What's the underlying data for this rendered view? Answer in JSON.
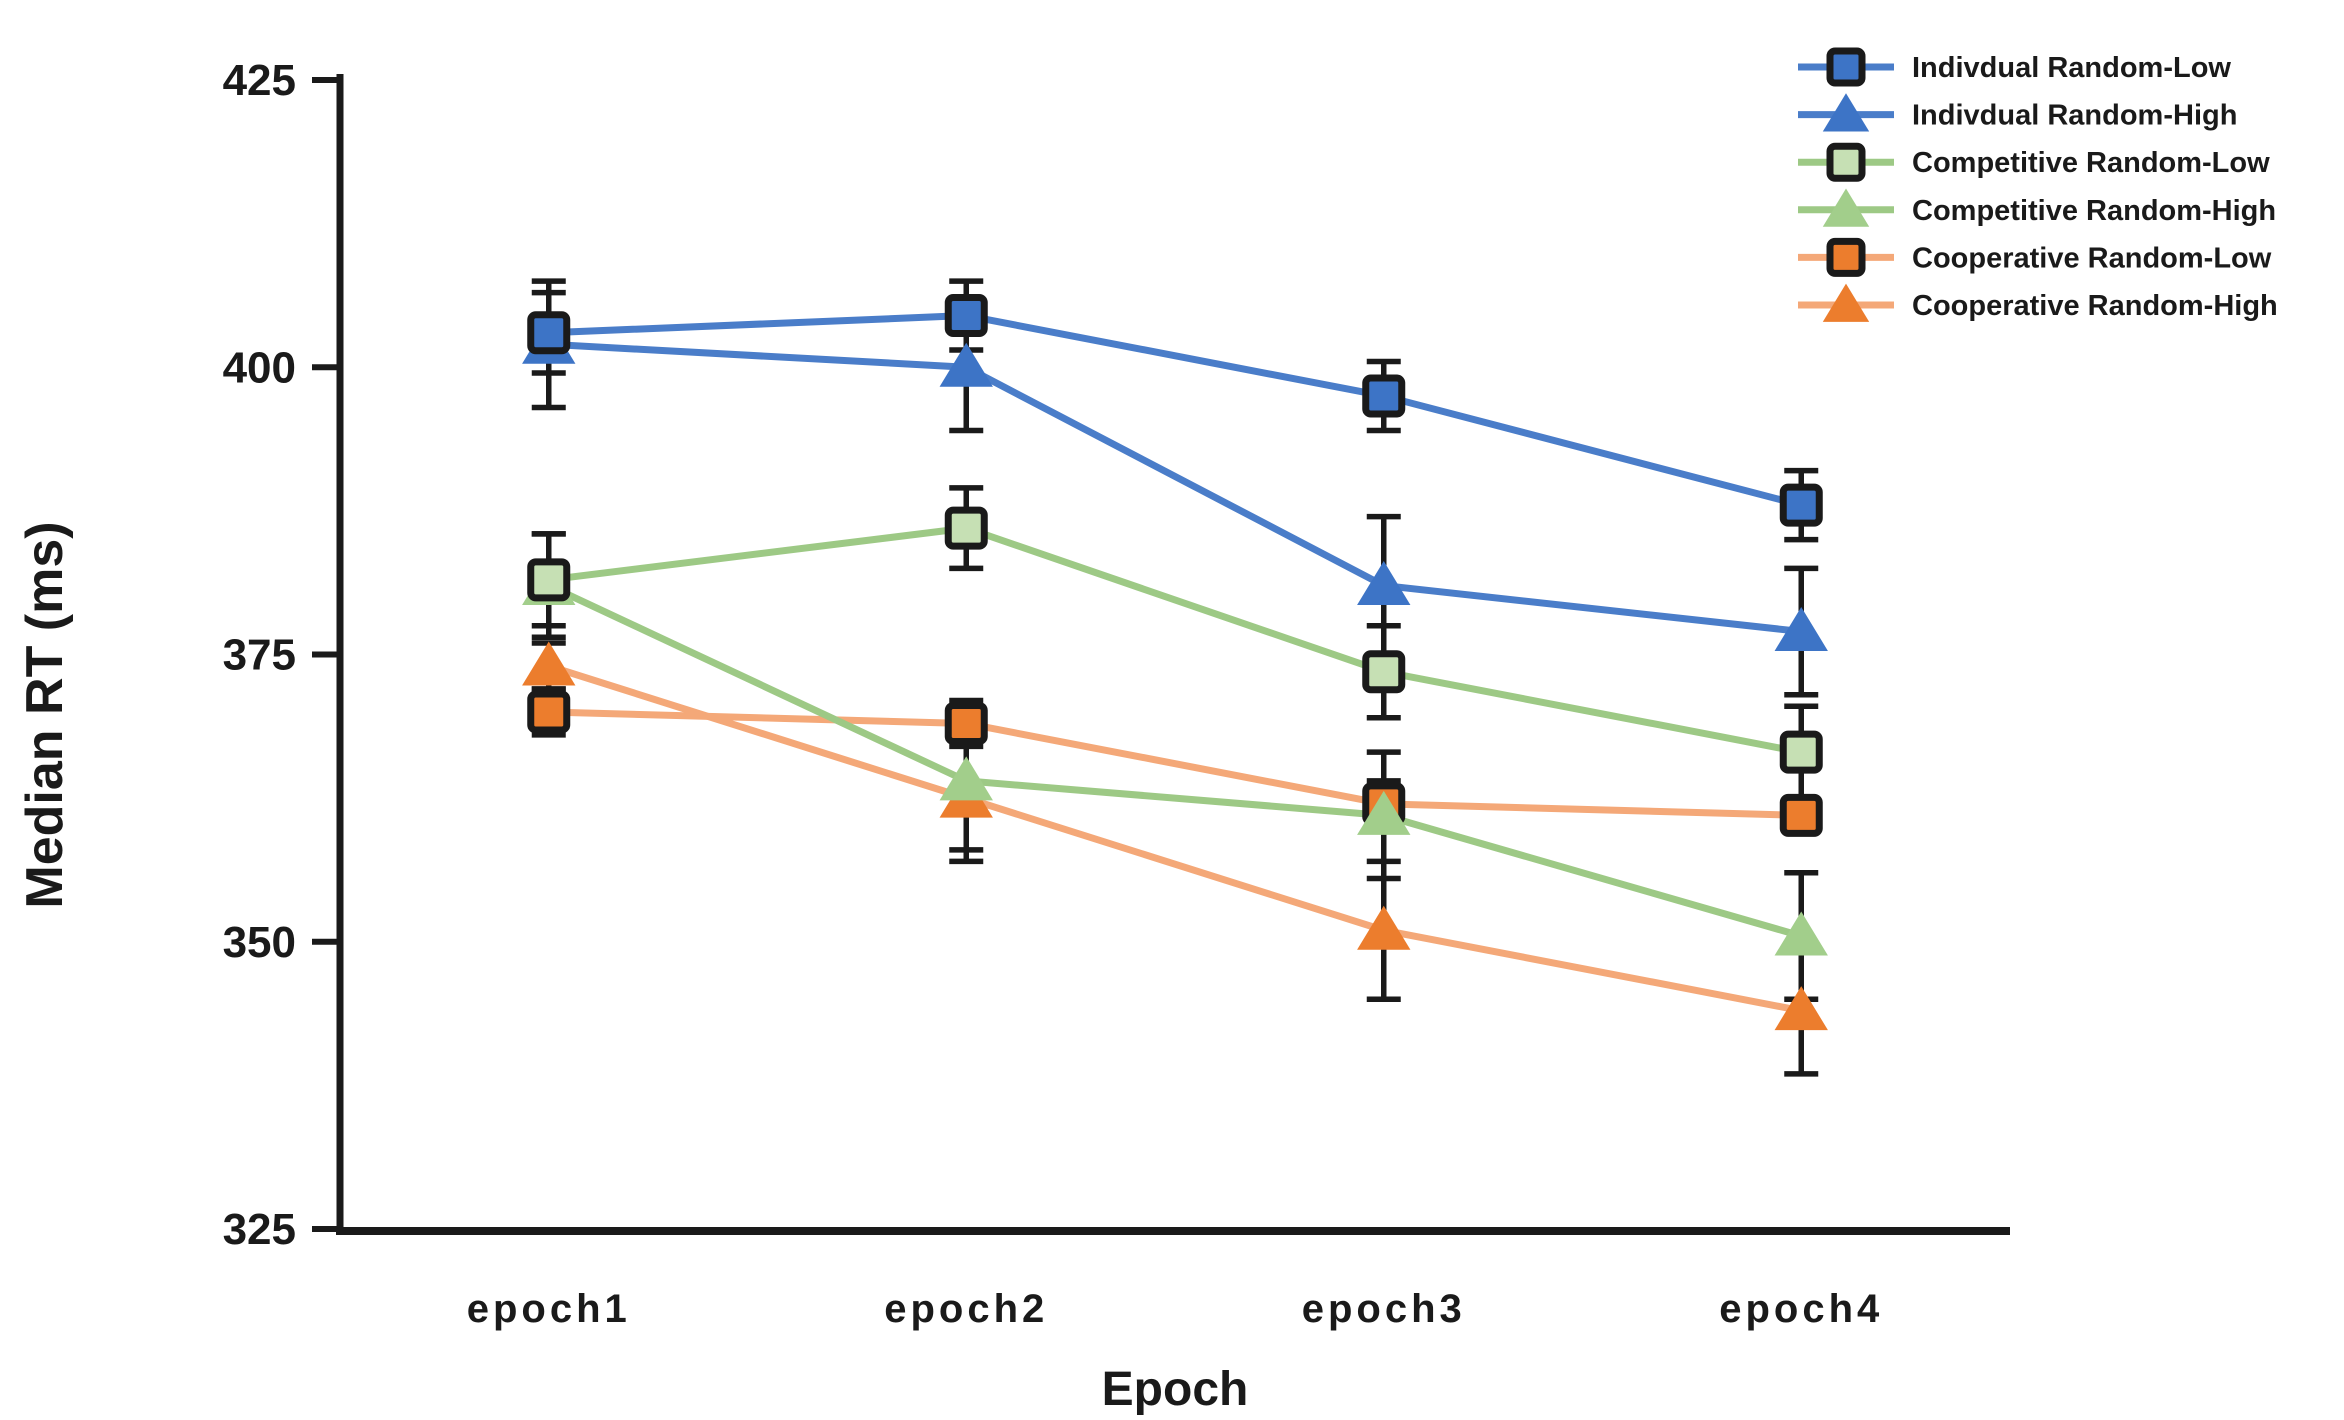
{
  "chart_data": {
    "type": "line",
    "title": "",
    "xlabel": "Epoch",
    "ylabel": "Median RT (ms)",
    "categories": [
      "epoch1",
      "epoch2",
      "epoch3",
      "epoch4"
    ],
    "ylim": [
      325,
      425
    ],
    "yticks": [
      325,
      350,
      375,
      400,
      425
    ],
    "grid": false,
    "legend_position": "top-right",
    "error_bars": true,
    "axis_color": "#1a1a1a",
    "series": [
      {
        "name": "Indivdual Random-Low",
        "marker": "square",
        "marker_fill": "#3D74C6",
        "marker_stroke": "#1a1a1a",
        "line_color": "#4A7DC9",
        "values": [
          403,
          404.5,
          397.5,
          388
        ],
        "errors": [
          3.5,
          3,
          3,
          3
        ]
      },
      {
        "name": "Indivdual Random-High",
        "marker": "triangle",
        "marker_fill": "#3D74C6",
        "marker_stroke": "none",
        "line_color": "#4A7DC9",
        "values": [
          402,
          400,
          381,
          377
        ],
        "errors": [
          5.5,
          5.5,
          6,
          5.5
        ]
      },
      {
        "name": "Competitive Random-Low",
        "marker": "square",
        "marker_fill": "#C6E0B4",
        "marker_stroke": "#1a1a1a",
        "line_color": "#9DC985",
        "values": [
          381.5,
          386,
          373.5,
          366.5
        ],
        "errors": [
          4,
          3.5,
          4,
          4
        ]
      },
      {
        "name": "Competitive Random-High",
        "marker": "triangle",
        "marker_fill": "#A2CE8B",
        "marker_stroke": "none",
        "line_color": "#9DC985",
        "values": [
          381,
          364,
          361,
          350.5
        ],
        "errors": [
          4.5,
          6,
          5.5,
          5.5
        ]
      },
      {
        "name": "Cooperative Random-Low",
        "marker": "square",
        "marker_fill": "#EC7D2D",
        "marker_stroke": "#1a1a1a",
        "line_color": "#F4A878",
        "values": [
          370,
          369,
          362,
          361
        ],
        "errors": [
          2,
          2,
          2,
          1.5
        ]
      },
      {
        "name": "Cooperative Random-High",
        "marker": "triangle",
        "marker_fill": "#EC7D2D",
        "marker_stroke": "none",
        "line_color": "#F4A878",
        "values": [
          374,
          362.5,
          351,
          344
        ],
        "errors": [
          2,
          5.5,
          6,
          5.5
        ]
      }
    ]
  }
}
